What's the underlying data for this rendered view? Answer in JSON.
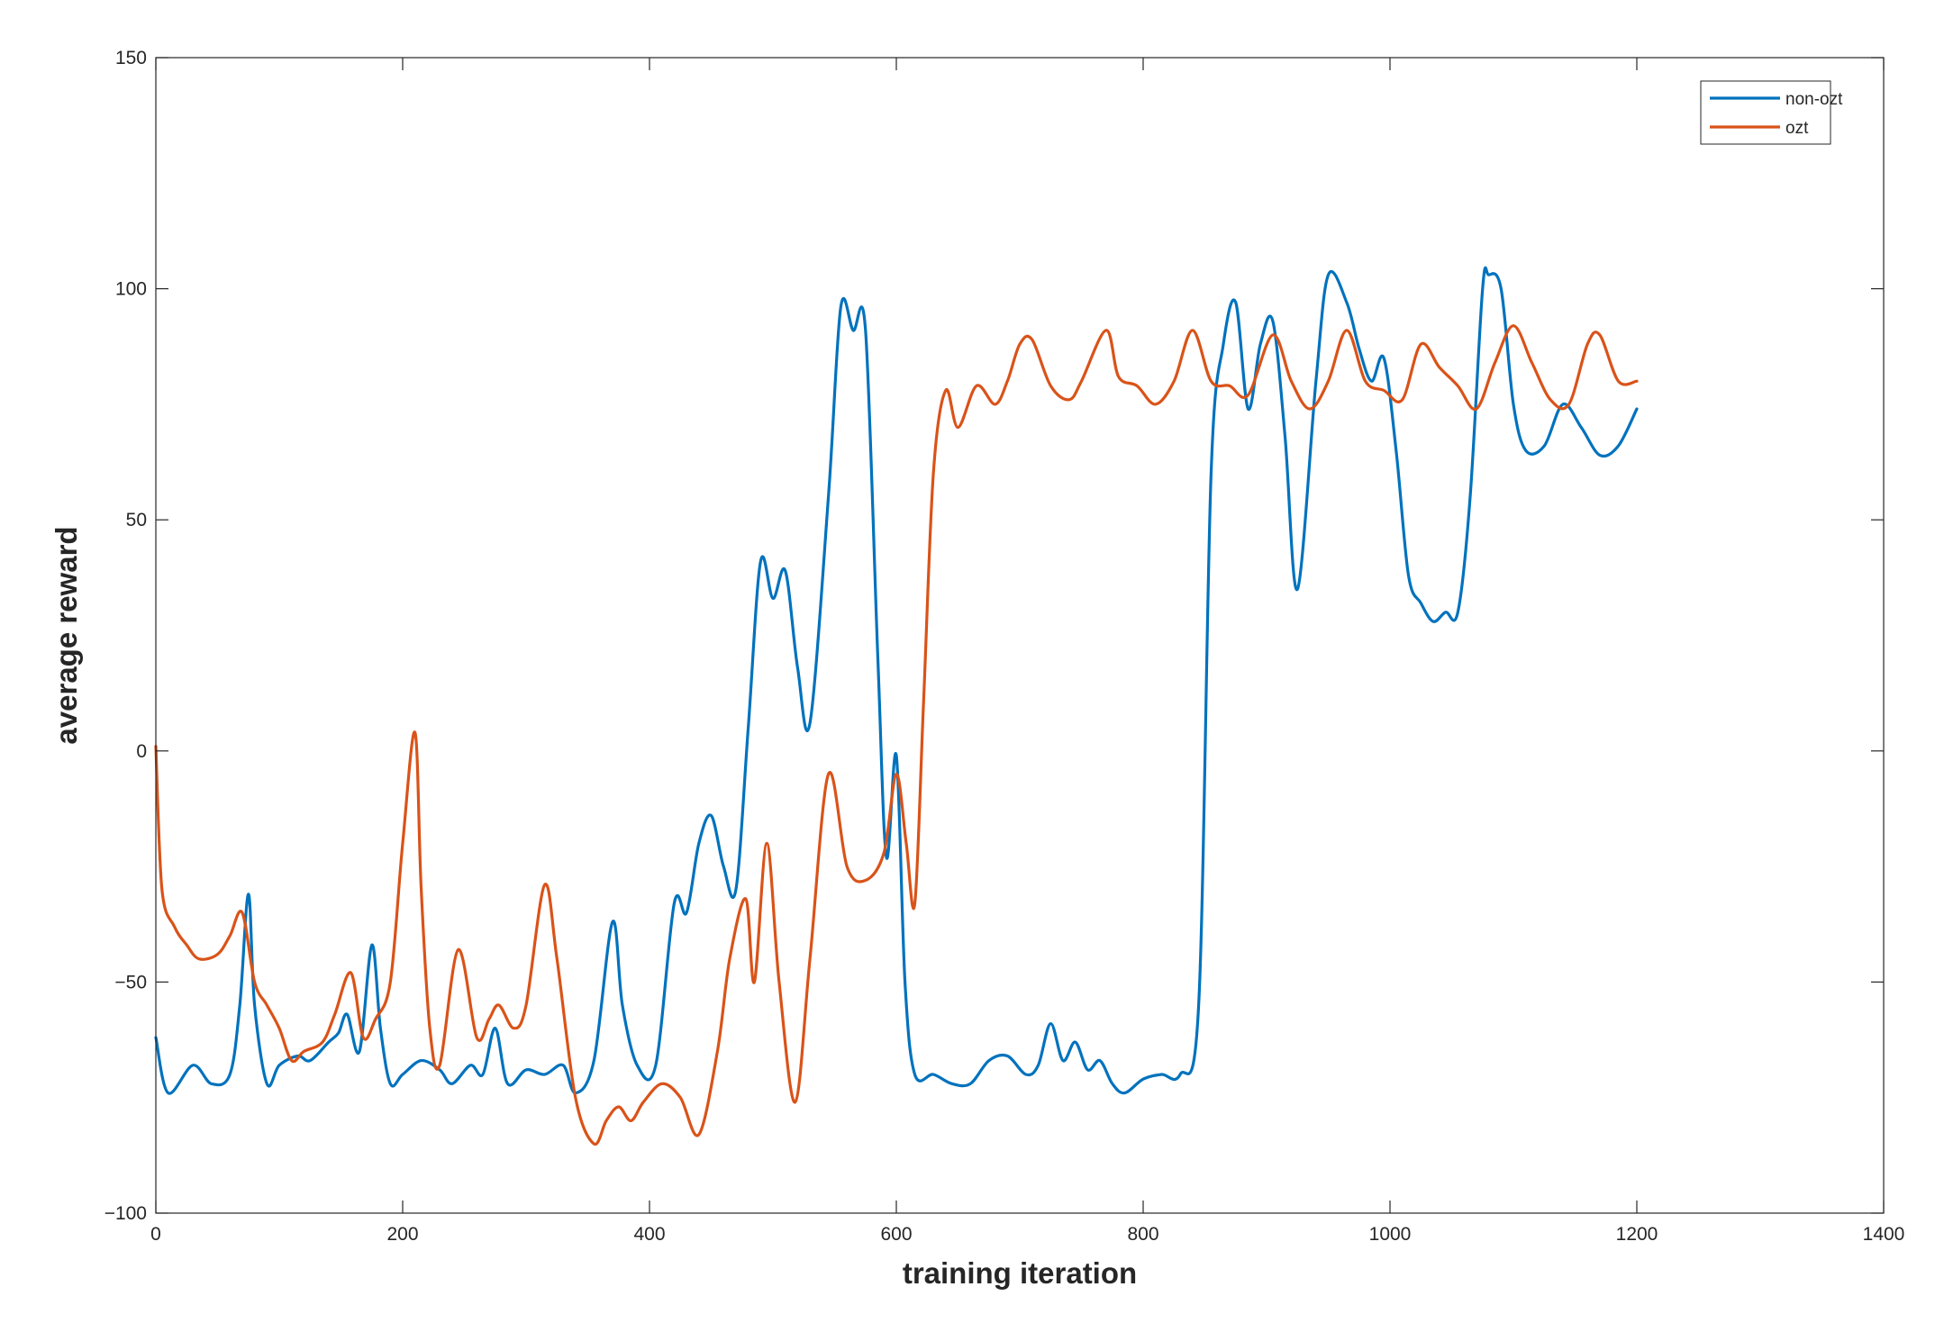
{
  "chart_data": {
    "type": "line",
    "title": "",
    "xlabel": "training iteration",
    "ylabel": "average reward",
    "xlim": [
      0,
      1400
    ],
    "ylim": [
      -100,
      150
    ],
    "xticks": [
      0,
      200,
      400,
      600,
      800,
      1000,
      1200,
      1400
    ],
    "yticks": [
      -100,
      -50,
      0,
      50,
      100,
      150
    ],
    "ytick_labels": [
      "−100",
      "−50",
      "0",
      "50",
      "100",
      "150"
    ],
    "grid": false,
    "legend": "top-right",
    "series": [
      {
        "name": "non-ozt",
        "color": "#0072BD",
        "x": [
          0,
          10,
          30,
          45,
          60,
          68,
          75,
          80,
          90,
          100,
          115,
          125,
          140,
          148,
          155,
          165,
          175,
          182,
          190,
          200,
          215,
          230,
          240,
          255,
          265,
          275,
          285,
          300,
          315,
          330,
          340,
          355,
          370,
          378,
          390,
          405,
          420,
          430,
          440,
          450,
          460,
          470,
          480,
          490,
          500,
          510,
          520,
          530,
          545,
          555,
          565,
          575,
          585,
          592,
          600,
          607,
          615,
          630,
          645,
          660,
          675,
          690,
          705,
          715,
          725,
          735,
          745,
          755,
          765,
          775,
          785,
          800,
          815,
          830,
          845,
          855,
          865,
          875,
          885,
          895,
          905,
          915,
          925,
          940,
          950,
          965,
          975,
          985,
          995,
          1005,
          1015,
          1025,
          1035,
          1045,
          1055,
          1065,
          1075,
          1080,
          1090,
          1100,
          1110,
          1125,
          1140,
          1155,
          1170,
          1185,
          1200
        ],
        "y": [
          -62,
          -74,
          -68,
          -72,
          -70,
          -55,
          -31,
          -55,
          -72,
          -68,
          -66,
          -67,
          -63,
          -61,
          -57,
          -65,
          -42,
          -60,
          -72,
          -70,
          -67,
          -69,
          -72,
          -68,
          -70,
          -60,
          -72,
          -69,
          -70,
          -68,
          -74,
          -67,
          -37,
          -55,
          -68,
          -68,
          -33,
          -35,
          -20,
          -14,
          -25,
          -30,
          5,
          41,
          33,
          39,
          18,
          6,
          55,
          96,
          91,
          91,
          20,
          -23,
          -1,
          -50,
          -70,
          -70,
          -72,
          -72,
          -67,
          -66,
          -70,
          -68,
          -59,
          -67,
          -63,
          -69,
          -67,
          -72,
          -74,
          -71,
          -70,
          -70,
          -55,
          60,
          88,
          97,
          74,
          88,
          93,
          68,
          35,
          80,
          103,
          97,
          87,
          80,
          85,
          65,
          38,
          32,
          28,
          30,
          30,
          55,
          100,
          103,
          100,
          75,
          65,
          66,
          75,
          70,
          64,
          66,
          74
        ]
      },
      {
        "name": "ozt",
        "color": "#D95319",
        "x": [
          0,
          5,
          15,
          25,
          35,
          50,
          60,
          70,
          80,
          90,
          100,
          110,
          120,
          135,
          145,
          158,
          168,
          178,
          190,
          200,
          210,
          215,
          222,
          230,
          245,
          260,
          270,
          278,
          290,
          300,
          315,
          325,
          340,
          355,
          365,
          375,
          385,
          395,
          410,
          425,
          440,
          455,
          465,
          478,
          485,
          495,
          505,
          518,
          530,
          545,
          560,
          575,
          590,
          600,
          608,
          615,
          622,
          630,
          640,
          650,
          665,
          680,
          690,
          700,
          710,
          725,
          740,
          750,
          770,
          780,
          795,
          810,
          825,
          840,
          855,
          870,
          885,
          905,
          920,
          935,
          950,
          965,
          980,
          995,
          1010,
          1025,
          1040,
          1055,
          1070,
          1085,
          1100,
          1115,
          1130,
          1145,
          1160,
          1170,
          1185,
          1200
        ],
        "y": [
          1,
          -30,
          -38,
          -42,
          -45,
          -44,
          -40,
          -35,
          -50,
          -55,
          -60,
          -67,
          -65,
          -63,
          -57,
          -48,
          -62,
          -58,
          -50,
          -20,
          4,
          -30,
          -60,
          -68,
          -43,
          -62,
          -58,
          -55,
          -60,
          -55,
          -29,
          -45,
          -75,
          -85,
          -80,
          -77,
          -80,
          -76,
          -72,
          -75,
          -83,
          -65,
          -45,
          -32,
          -50,
          -20,
          -50,
          -76,
          -45,
          -5,
          -25,
          -28,
          -22,
          -5,
          -20,
          -33,
          10,
          60,
          78,
          70,
          79,
          75,
          80,
          88,
          89,
          79,
          76,
          80,
          91,
          81,
          79,
          75,
          80,
          91,
          80,
          79,
          77,
          90,
          80,
          74,
          80,
          91,
          80,
          78,
          76,
          88,
          83,
          79,
          74,
          84,
          92,
          84,
          76,
          75,
          88,
          90,
          80,
          80
        ]
      }
    ]
  }
}
